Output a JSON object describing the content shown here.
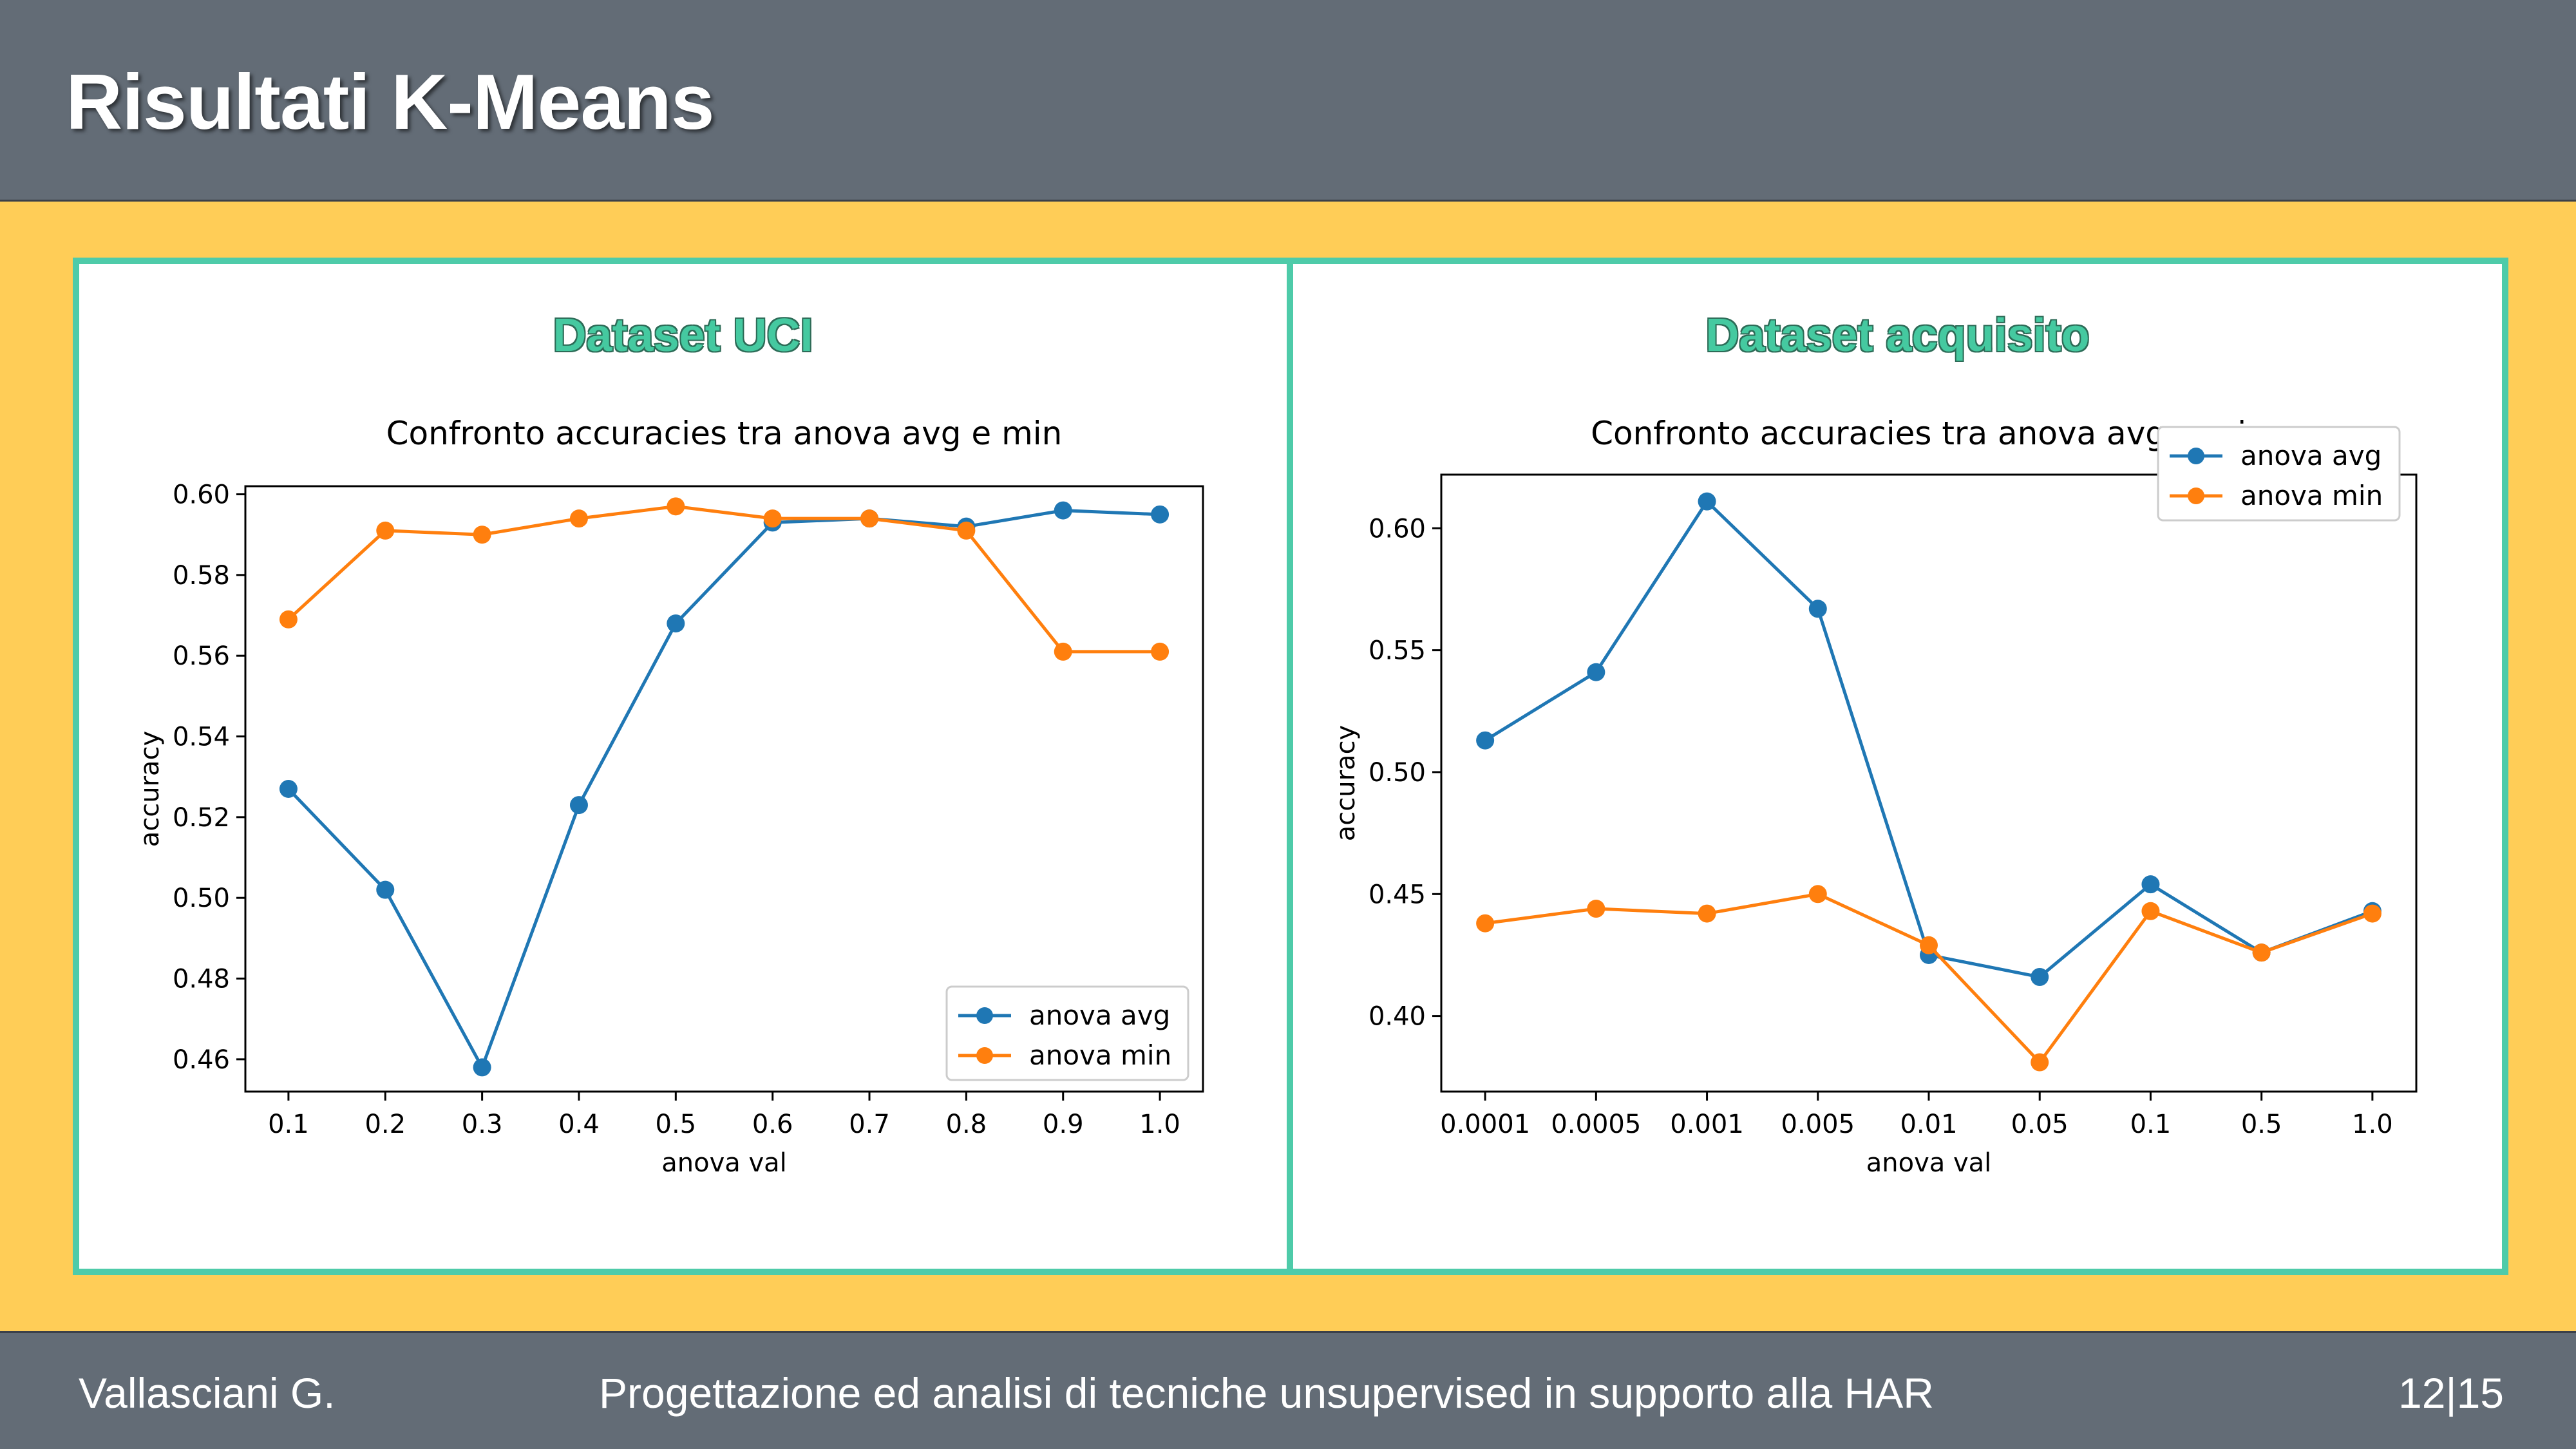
{
  "slide": {
    "title": "Risultati K-Means",
    "footer_author": "Vallasciani G.",
    "footer_subject": "Progettazione ed analisi di tecniche unsupervised in supporto alla HAR",
    "page_number": "12|15"
  },
  "panels": [
    {
      "heading": "Dataset UCI"
    },
    {
      "heading": "Dataset acquisito"
    }
  ],
  "colors": {
    "avg": "#1f77b4",
    "min": "#ff7f0e",
    "accent": "#4ecba9",
    "header_bg": "#636c76",
    "content_bg": "#ffcd57"
  },
  "chart_data": [
    {
      "type": "line",
      "title": "Confronto accuracies tra anova avg e min",
      "xlabel": "anova val",
      "ylabel": "accuracy",
      "categories": [
        "0.1",
        "0.2",
        "0.3",
        "0.4",
        "0.5",
        "0.6",
        "0.7",
        "0.8",
        "0.9",
        "1.0"
      ],
      "ylim": [
        0.452,
        0.602
      ],
      "yticks": [
        0.46,
        0.48,
        0.5,
        0.52,
        0.54,
        0.56,
        0.58,
        0.6
      ],
      "ytick_labels": [
        "0.46",
        "0.48",
        "0.50",
        "0.52",
        "0.54",
        "0.56",
        "0.58",
        "0.60"
      ],
      "legend_position": "lower-right",
      "grid": false,
      "series": [
        {
          "name": "anova avg",
          "values": [
            0.527,
            0.502,
            0.458,
            0.523,
            0.568,
            0.593,
            0.594,
            0.592,
            0.596,
            0.595
          ]
        },
        {
          "name": "anova min",
          "values": [
            0.569,
            0.591,
            0.59,
            0.594,
            0.597,
            0.594,
            0.594,
            0.591,
            0.561,
            0.561
          ]
        }
      ]
    },
    {
      "type": "line",
      "title": "Confronto accuracies tra anova avg e min",
      "xlabel": "anova val",
      "ylabel": "accuracy",
      "categories": [
        "0.0001",
        "0.0005",
        "0.001",
        "0.005",
        "0.01",
        "0.05",
        "0.1",
        "0.5",
        "1.0"
      ],
      "ylim": [
        0.369,
        0.622
      ],
      "yticks": [
        0.4,
        0.45,
        0.5,
        0.55,
        0.6
      ],
      "ytick_labels": [
        "0.40",
        "0.45",
        "0.50",
        "0.55",
        "0.60"
      ],
      "legend_position": "upper-right",
      "grid": false,
      "series": [
        {
          "name": "anova avg",
          "values": [
            0.513,
            0.541,
            0.611,
            0.567,
            0.425,
            0.416,
            0.454,
            0.426,
            0.443
          ]
        },
        {
          "name": "anova min",
          "values": [
            0.438,
            0.444,
            0.442,
            0.45,
            0.429,
            0.381,
            0.443,
            0.426,
            0.442
          ]
        }
      ]
    }
  ]
}
